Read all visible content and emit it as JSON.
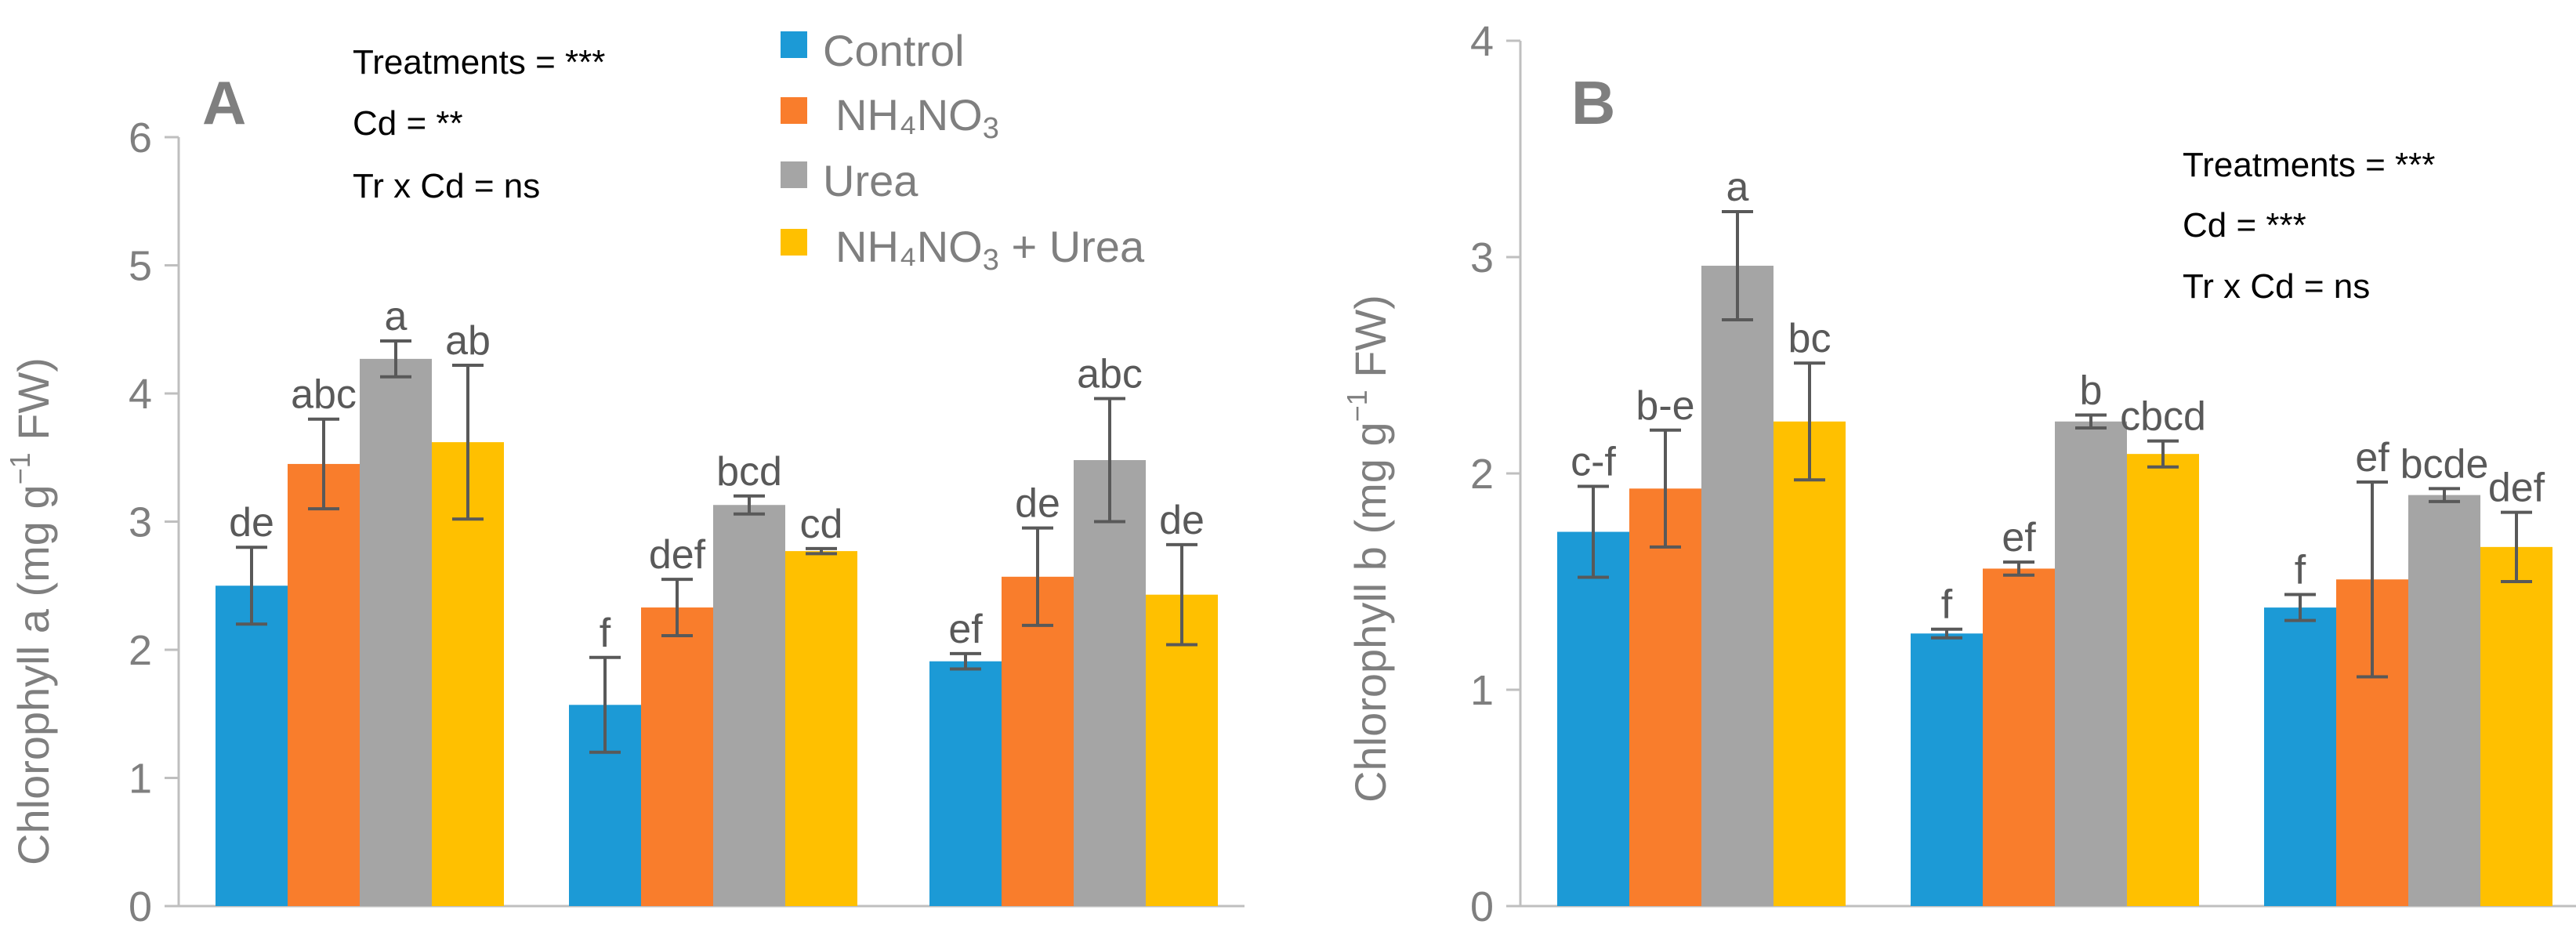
{
  "legend": [
    {
      "label": "Control",
      "label_sub": "",
      "label_tail": "",
      "color": "#1c9ad6"
    },
    {
      "label": "NH₄NO",
      "label_sub": "3",
      "label_tail": "",
      "color": "#f97d2c"
    },
    {
      "label": "Urea",
      "label_sub": "",
      "label_tail": "",
      "color": "#a5a5a5"
    },
    {
      "label": "NH₄NO",
      "label_sub": "3",
      "label_tail": " + Urea",
      "color": "#ffc000"
    }
  ],
  "chart_data": [
    {
      "type": "bar",
      "panel": "A",
      "ylabel_pre": "Chlorophyll a (mg g",
      "ylabel_sup": "−1",
      "ylabel_post": " FW)",
      "ylim": [
        0,
        6
      ],
      "yticks": [
        "0",
        "1",
        "2",
        "3",
        "4",
        "5",
        "6"
      ],
      "groups": 3,
      "series": [
        {
          "name": "Control",
          "values": [
            2.5,
            1.57,
            1.91
          ],
          "errors": [
            0.3,
            0.37,
            0.06
          ],
          "letters": [
            "de",
            "f",
            "ef"
          ]
        },
        {
          "name": "NH4NO3",
          "values": [
            3.45,
            2.33,
            2.57
          ],
          "errors": [
            0.35,
            0.22,
            0.38
          ],
          "letters": [
            "abc",
            "def",
            "de"
          ]
        },
        {
          "name": "Urea",
          "values": [
            4.27,
            3.13,
            3.48
          ],
          "errors": [
            0.14,
            0.07,
            0.48
          ],
          "letters": [
            "a",
            "bcd",
            "abc"
          ]
        },
        {
          "name": "NH4NO3 + Urea",
          "values": [
            3.62,
            2.77,
            2.43
          ],
          "errors": [
            0.6,
            0.02,
            0.39
          ],
          "letters": [
            "ab",
            "cd",
            "de"
          ]
        }
      ],
      "stats": [
        "Treatments = ***",
        "Cd = **",
        "Tr x Cd = ns"
      ]
    },
    {
      "type": "bar",
      "panel": "B",
      "ylabel_pre": "Chlorophyll b (mg g",
      "ylabel_sup": "−1",
      "ylabel_post": " FW)",
      "ylim": [
        0,
        4
      ],
      "yticks": [
        "0",
        "1",
        "2",
        "3",
        "4"
      ],
      "groups": 3,
      "series": [
        {
          "name": "Control",
          "values": [
            1.73,
            1.26,
            1.38
          ],
          "errors": [
            0.21,
            0.02,
            0.06
          ],
          "letters": [
            "c-f",
            "f",
            "f"
          ]
        },
        {
          "name": "NH4NO3",
          "values": [
            1.93,
            1.56,
            1.51
          ],
          "errors": [
            0.27,
            0.03,
            0.45
          ],
          "letters": [
            "b-e",
            "ef",
            "ef"
          ]
        },
        {
          "name": "Urea",
          "values": [
            2.96,
            2.24,
            1.9
          ],
          "errors": [
            0.25,
            0.03,
            0.03
          ],
          "letters": [
            "a",
            "b",
            "bcde"
          ]
        },
        {
          "name": "NH4NO3 + Urea",
          "values": [
            2.24,
            2.09,
            1.66
          ],
          "errors": [
            0.27,
            0.06,
            0.16
          ],
          "letters": [
            "bc",
            "cbcd",
            "def"
          ]
        }
      ],
      "stats": [
        "Treatments = ***",
        "Cd = ***",
        "Tr x Cd = ns"
      ]
    }
  ]
}
